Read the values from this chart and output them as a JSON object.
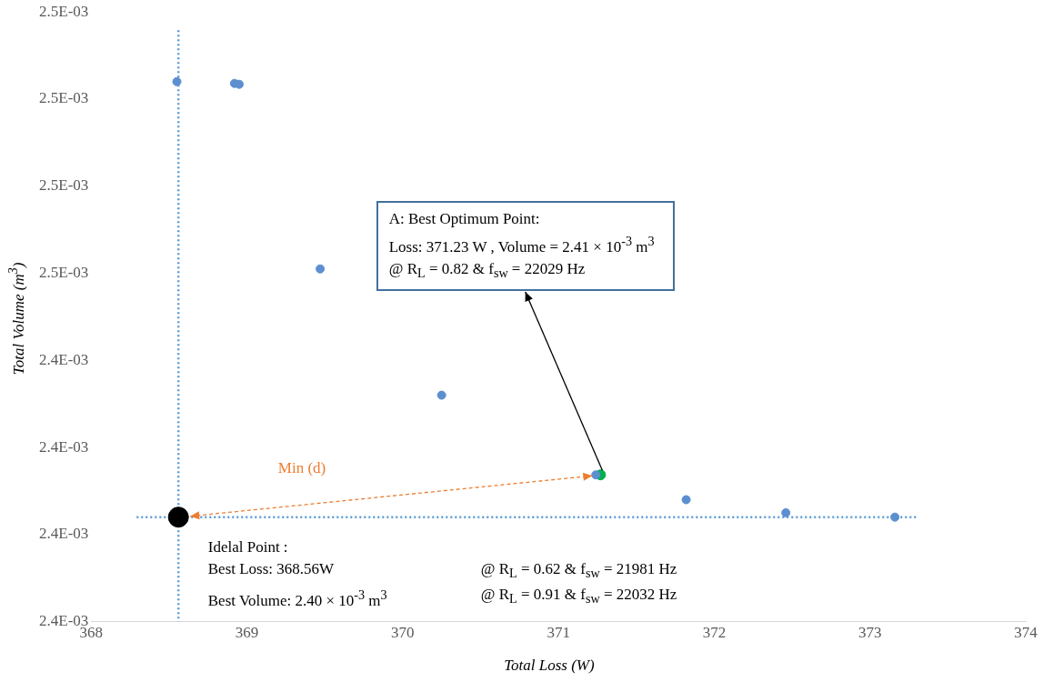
{
  "chart_data": {
    "type": "scatter",
    "xlabel": "Total Loss (W)",
    "ylabel": "Total Volume (m$^{3}$)",
    "xlim": [
      368,
      374
    ],
    "xticks": [
      368,
      369,
      370,
      371,
      372,
      373,
      374
    ],
    "ylim": [
      0.00238,
      0.00252
    ],
    "yticks": [
      {
        "value": 0.00238,
        "label": "2.4E-03"
      },
      {
        "value": 0.0024,
        "label": "2.4E-03"
      },
      {
        "value": 0.00242,
        "label": "2.4E-03"
      },
      {
        "value": 0.00244,
        "label": "2.4E-03"
      },
      {
        "value": 0.00246,
        "label": "2.5E-03"
      },
      {
        "value": 0.00248,
        "label": "2.5E-03"
      },
      {
        "value": 0.0025,
        "label": "2.5E-03"
      },
      {
        "value": 0.00252,
        "label": "2.5E-03"
      }
    ],
    "series": [
      {
        "color": "#5b8fd0",
        "x": [
          368.55,
          368.92,
          368.95,
          369.47,
          370.25,
          371.24,
          371.82,
          372.46,
          373.16
        ],
        "values": [
          0.002504,
          0.0025036,
          0.0025034,
          0.002461,
          0.002432,
          0.0024137,
          0.002408,
          0.002405,
          0.002404
        ]
      },
      {
        "color": "#000000",
        "x": [
          368.56
        ],
        "values": [
          0.002404
        ]
      },
      {
        "color": "#00b050",
        "x": [
          371.27
        ],
        "values": [
          0.0024137
        ]
      }
    ],
    "marker": "circle",
    "grid": false,
    "legend": false,
    "ref_lines": [
      {
        "axis": "x",
        "value": 368.56,
        "color": "#5b9bd5",
        "line_style": "dotted"
      },
      {
        "axis": "y",
        "value": 0.002404,
        "color": "#5b9bd5",
        "line_style": "dotted"
      }
    ],
    "annotations": [
      "A: Best Optimum Point:\nLoss: 371.23  W , Volume = 2.41  × 10$^{-3}$ m$^{3}$\n@ R$_{L}$ = 0.82 & f$_{sw}$ = 22029 Hz",
      "Idelal Point :\nBest Loss: 368.56W\t@ R$_{L}$ = 0.62   & f$_{sw}$ = 21981 Hz\nBest Volume: 2.40 × 10$^{-3}$ m$^{3}$\t@ R$_{L}$ = 0.91   & f$_{sw}$ = 22032 Hz",
      "Min (d)"
    ]
  }
}
